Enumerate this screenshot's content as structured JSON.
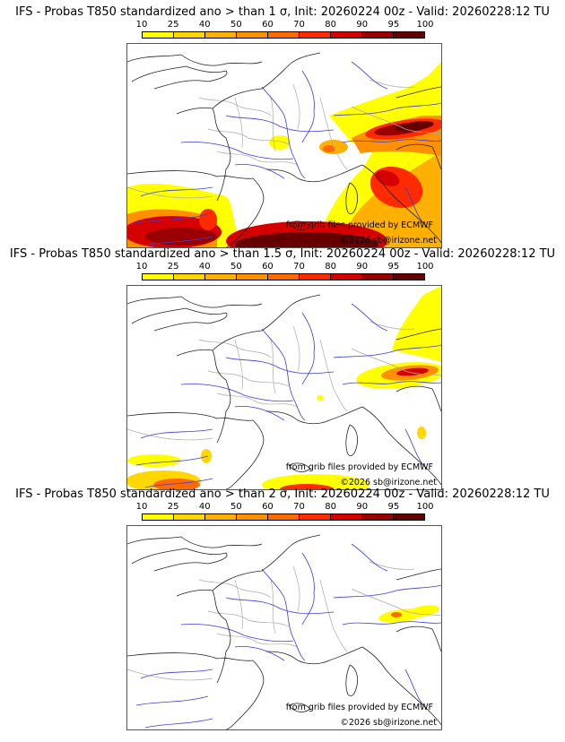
{
  "panels": [
    {
      "title": "IFS - Probas T850  standardized ano > than 1 σ, Init: 20260224 00z - Valid: 20260228:12 TU",
      "threshold": "1 σ"
    },
    {
      "title": "IFS - Probas T850  standardized ano > than 1.5 σ, Init: 20260224 00z - Valid: 20260228:12 TU",
      "threshold": "1.5 σ"
    },
    {
      "title": "IFS - Probas T850  standardized ano > than 2 σ, Init: 20260224 00z - Valid: 20260228:12 TU",
      "threshold": "2 σ"
    }
  ],
  "colorbar": {
    "ticks": [
      "10",
      "25",
      "40",
      "50",
      "60",
      "70",
      "80",
      "90",
      "95",
      "100"
    ],
    "colors": [
      "#ffff00",
      "#ffd700",
      "#ffb000",
      "#ff9000",
      "#ff6a00",
      "#ff2a00",
      "#d70000",
      "#9b0000",
      "#640000"
    ]
  },
  "map": {
    "credit_source": "from grib files provided by ECMWF",
    "credit_copyright": "©2026 sb@irizone.net"
  }
}
